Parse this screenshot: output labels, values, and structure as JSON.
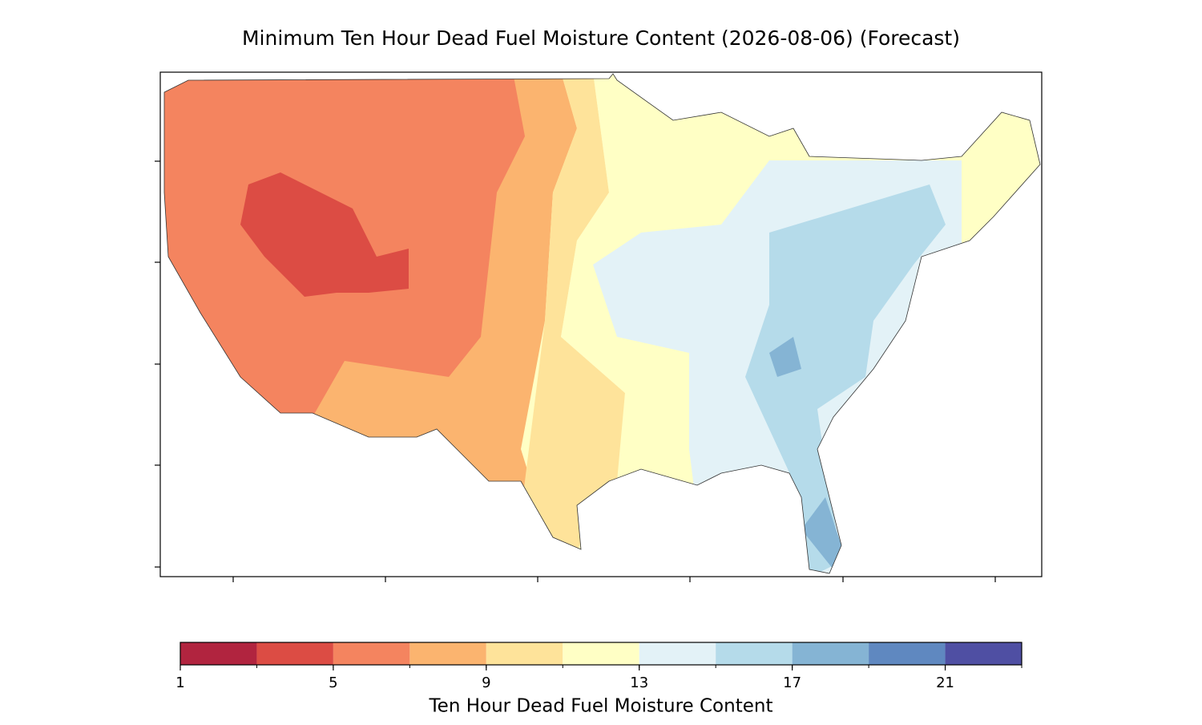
{
  "title": "Minimum Ten Hour Dead Fuel Moisture Content (2026-08-06) (Forecast)",
  "colorbar": {
    "label": "Ten Hour Dead Fuel Moisture Content",
    "levels": [
      1,
      3,
      5,
      7,
      9,
      11,
      13,
      15,
      17,
      19,
      21,
      23
    ],
    "colors": [
      "#b1243f",
      "#dc4c44",
      "#f4845f",
      "#fbb46f",
      "#fee39a",
      "#ffffc5",
      "#e3f2f7",
      "#b5dbea",
      "#85b4d4",
      "#5f88c0",
      "#4f4fa3"
    ],
    "ticks": [
      1,
      5,
      9,
      13,
      17,
      21
    ]
  }
}
